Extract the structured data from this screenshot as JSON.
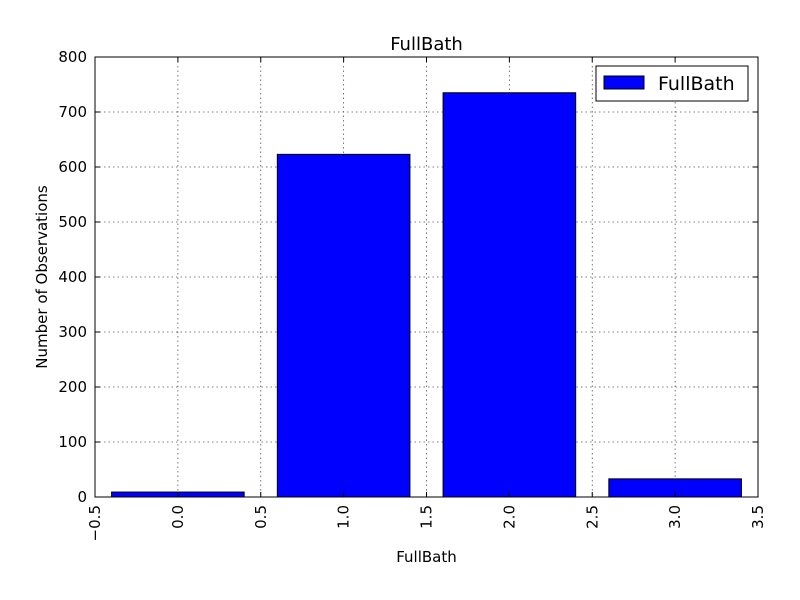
{
  "chart_data": {
    "type": "bar",
    "title": "FullBath",
    "xlabel": "FullBath",
    "ylabel": "Number of Observations",
    "x": [
      0,
      1,
      2,
      3
    ],
    "values": [
      9,
      623,
      735,
      33
    ],
    "bar_width": 0.8,
    "xlim": [
      -0.5,
      3.5
    ],
    "ylim": [
      0,
      800
    ],
    "xticks": [
      "−0.5",
      "0.0",
      "0.5",
      "1.0",
      "1.5",
      "2.0",
      "2.5",
      "3.0",
      "3.5"
    ],
    "yticks": [
      "0",
      "100",
      "200",
      "300",
      "400",
      "500",
      "600",
      "700",
      "800"
    ],
    "series": [
      {
        "name": "FullBath",
        "values": [
          9,
          623,
          735,
          33
        ]
      }
    ],
    "grid": true,
    "legend_position": "top-right",
    "colors": {
      "bar": "#0000ff",
      "edge": "#000000"
    }
  }
}
